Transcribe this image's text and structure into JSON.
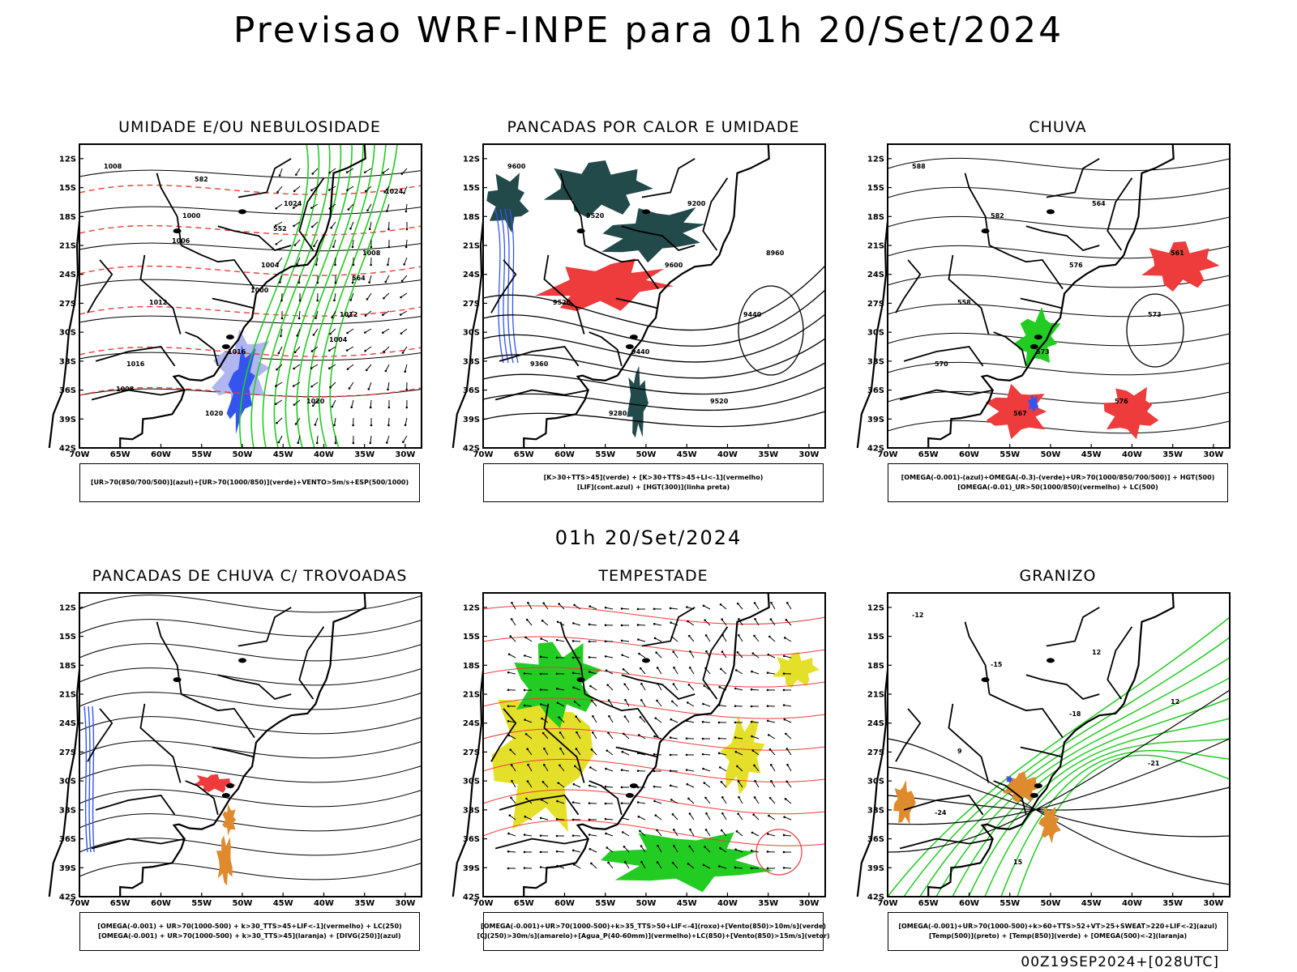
{
  "main_title": "Previsao WRF-INPE  para 01h 20/Set/2024",
  "mid_title": "01h 20/Set/2024",
  "footer_stamp": "00Z19SEP2024+[028UTC]",
  "colors": {
    "blue": "#3355ee",
    "light_blue": "#b0b6f0",
    "green": "#22cc22",
    "red": "#ee3b3b",
    "dark_teal": "#234a4a",
    "yellow": "#e4e02a",
    "orange": "#e08a2e",
    "purple": "#9933cc"
  },
  "axes": {
    "lat_ticks": [
      "12S",
      "15S",
      "18S",
      "21S",
      "24S",
      "27S",
      "30S",
      "33S",
      "36S",
      "39S",
      "42S"
    ],
    "lon_ticks": [
      "70W",
      "65W",
      "60W",
      "55W",
      "50W",
      "45W",
      "40W",
      "35W",
      "30W"
    ]
  },
  "chart_data": [
    {
      "type": "map",
      "title": "UMIDADE E/OU NEBULOSIDADE",
      "legend": [
        "[UR>70(850/700/500)](azul)+[UR>70(1000/850)](verde)+VENTO>5m/s+ESP(500/1000)"
      ],
      "contour_labels": [
        "1008",
        "1000",
        "1004",
        "1012",
        "1016",
        "1020",
        "1024",
        "1008",
        "1012",
        "1016",
        "1020",
        "1024",
        "1006",
        "1000",
        "1004",
        "1008",
        "582",
        "552",
        "564"
      ],
      "layers": [
        "blue-fill",
        "green-contour",
        "red-dashed",
        "wind-vectors",
        "black-isobars"
      ]
    },
    {
      "type": "map",
      "title": "PANCADAS POR CALOR E UMIDADE",
      "legend": [
        "[K>30+TTS>45](verde) + [K>30+TTS>45+LI<-1](vermelho)",
        "[LIF](cont.azul) + [HGT(300)](linha preta)"
      ],
      "contour_labels": [
        "9600",
        "9520",
        "9600",
        "9440",
        "9360",
        "9280",
        "9200",
        "8960",
        "9520",
        "9440",
        "9520"
      ],
      "layers": [
        "dark-teal-fill",
        "red-fill",
        "blue-contour",
        "black-hgt"
      ]
    },
    {
      "type": "map",
      "title": "CHUVA",
      "legend": [
        "[OMEGA(-0.001)-(azul)+OMEGA(-0.3)-(verde)+UR>70(1000/850/700/500)] + HGT(500)",
        "[OMEGA(-0.01)_UR>50(1000/850)(vermelho) + LC(500)"
      ],
      "contour_labels": [
        "588",
        "582",
        "576",
        "573",
        "570",
        "567",
        "564",
        "561",
        "558",
        "573",
        "576"
      ],
      "layers": [
        "red-fill",
        "green-fill",
        "blue-fill",
        "streamlines"
      ]
    },
    {
      "type": "map",
      "title": "PANCADAS DE CHUVA C/ TROVOADAS",
      "legend": [
        "[OMEGA(-0.001) + UR>70(1000-500) + k>30_TTS>45+LIF<-1](vermelho) + LC(250)",
        "[OMEGA(-0.001) + UR>70(1000-500) + k>30_TTS>45](laranja) + [DIVG(250)](azul)"
      ],
      "contour_labels": [],
      "layers": [
        "red-fill",
        "orange-fill",
        "blue-contour",
        "streamlines"
      ]
    },
    {
      "type": "map",
      "title": "TEMPESTADE",
      "legend": [
        "[OMEGA(-0.001)+UR>70(1000-500)+k>35_TTS>50+LIF<-4](roxo)+[Vento(850)>10m/s](verde)",
        "[CJ(250)>30m/s](amarelo)+[Agua_P(40-60mm)](vermelho)+LC(850)+[Vento(850)>15m/s](vetor)"
      ],
      "contour_labels": [],
      "layers": [
        "yellow-fill",
        "green-fill",
        "red-streamlines",
        "wind-vectors"
      ]
    },
    {
      "type": "map",
      "title": "GRANIZO",
      "legend": [
        "[OMEGA(-0.001)+UR>70(1000-500)+k>60+TTS>52+VT>25+SWEAT>220+LIF<-2](azul)",
        "[Temp(500)](preto) + [Temp(850)](verde) + [OMEGA(500)<-2](laranja)"
      ],
      "contour_labels": [
        "-12",
        "-15",
        "-18",
        "-21",
        "-24",
        "15",
        "12",
        "12",
        "9"
      ],
      "layers": [
        "green-contour",
        "black-contour",
        "orange-contour"
      ]
    }
  ]
}
